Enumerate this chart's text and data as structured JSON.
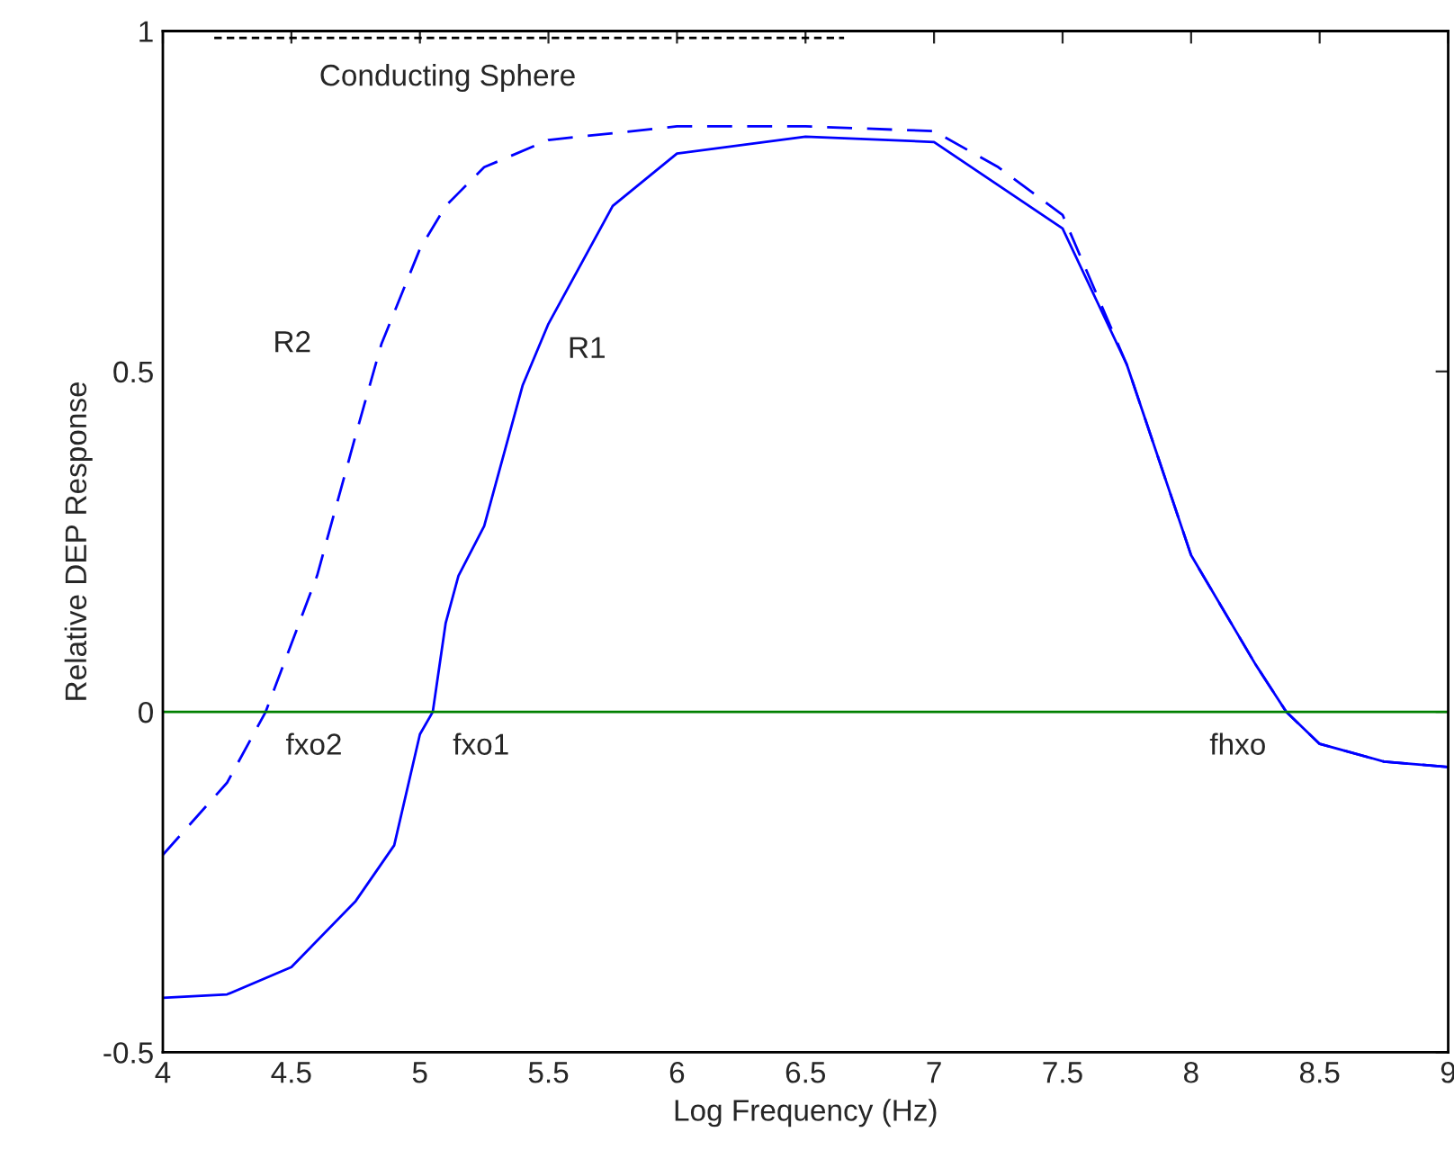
{
  "chart_data": {
    "type": "line",
    "xlabel": "Log Frequency (Hz)",
    "ylabel": "Relative DEP Response",
    "xlim": [
      4,
      9
    ],
    "ylim": [
      -0.5,
      1
    ],
    "xticks": [
      4,
      4.5,
      5,
      5.5,
      6,
      6.5,
      7,
      7.5,
      8,
      8.5,
      9
    ],
    "yticks": [
      -0.5,
      0,
      0.5,
      1
    ],
    "grid": false,
    "legend": false,
    "series": [
      {
        "name": "R1",
        "color": "#0000ff",
        "line_style": "solid",
        "x": [
          4,
          4.25,
          4.5,
          4.75,
          4.9,
          5,
          5.05,
          5.1,
          5.15,
          5.25,
          5.4,
          5.5,
          5.75,
          6,
          6.5,
          7,
          7.5,
          7.75,
          8,
          8.25,
          8.37,
          8.5,
          8.75,
          9
        ],
        "values": [
          -0.42,
          -0.415,
          -0.375,
          -0.278,
          -0.196,
          -0.033,
          0,
          0.13,
          0.2,
          0.273,
          0.48,
          0.57,
          0.743,
          0.82,
          0.845,
          0.837,
          0.71,
          0.51,
          0.23,
          0.07,
          0,
          -0.047,
          -0.073,
          -0.081
        ]
      },
      {
        "name": "R2",
        "color": "#0000ff",
        "line_style": "dashed",
        "x": [
          4,
          4.25,
          4.4,
          4.5,
          4.6,
          4.75,
          4.85,
          5,
          5.1,
          5.25,
          5.5,
          6,
          6.5,
          7,
          7.25,
          7.5,
          7.75,
          8,
          8.25,
          8.37,
          8.5,
          8.75,
          9
        ],
        "values": [
          -0.21,
          -0.104,
          0,
          0.1,
          0.2,
          0.406,
          0.54,
          0.68,
          0.743,
          0.8,
          0.84,
          0.86,
          0.86,
          0.853,
          0.8,
          0.73,
          0.51,
          0.23,
          0.07,
          0,
          -0.047,
          -0.073,
          -0.081
        ]
      },
      {
        "name": "Conducting Sphere",
        "color": "#000000",
        "line_style": "dashed",
        "x": [
          4.2,
          6.65
        ],
        "values": [
          0.99,
          0.99
        ]
      }
    ],
    "ref_lines": [
      {
        "axis": "y",
        "value": 0,
        "color": "#008000"
      }
    ],
    "annotations": [
      {
        "text": "fxo2",
        "x": 4.4,
        "y": 0
      },
      {
        "text": "fxo1",
        "x": 5.05,
        "y": 0
      },
      {
        "text": "fhxo",
        "x": 8.37,
        "y": 0
      }
    ]
  }
}
